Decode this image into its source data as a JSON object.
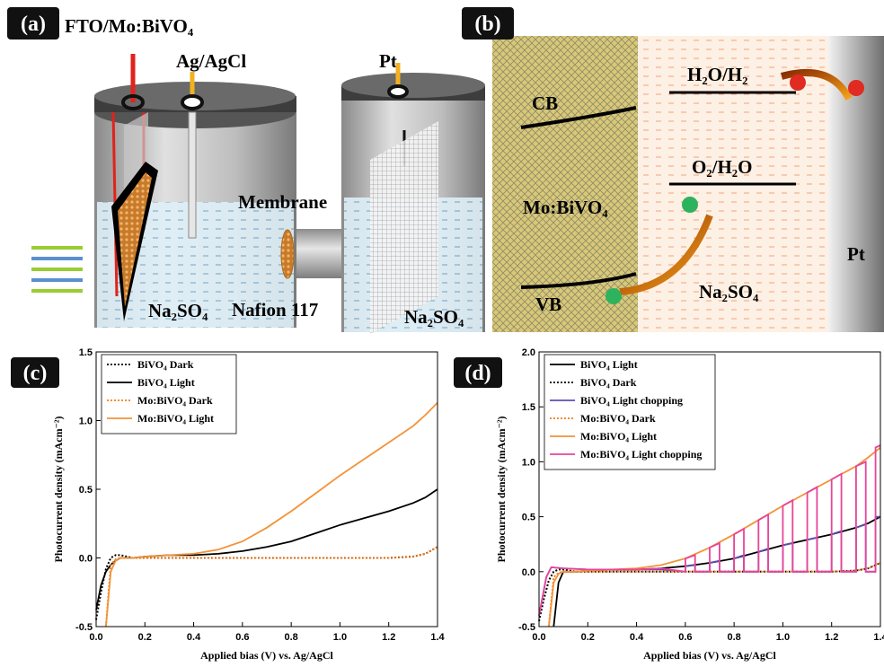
{
  "panel_a": {
    "tag": "(a)",
    "electrode": "FTO/Mo:BiVO₄",
    "reference": "Ag/AgCl",
    "counter": "Pt",
    "membrane": "Membrane",
    "nafion": "Nafion 117",
    "electrolyte_left": "Na₂SO₄",
    "electrolyte_right": "Na₂SO₄"
  },
  "panel_b": {
    "tag": "(b)",
    "cb": "CB",
    "vb": "VB",
    "semiconductor": "Mo:BiVO₄",
    "h2_level": "H₂O/H₂",
    "o2_level": "O₂/H₂O",
    "electrolyte": "Na₂SO₄",
    "metal": "Pt"
  },
  "chart_data": [
    {
      "type": "line",
      "tag": "(c)",
      "xlabel": "Applied bias (V) vs. Ag/AgCl",
      "ylabel": "Photocurrent density (mAcm⁻²)",
      "xlim": [
        0,
        1.4
      ],
      "ylim": [
        -0.5,
        1.5
      ],
      "xticks": [
        {
          "value": 0,
          "label": "0.0"
        },
        0.2,
        0.4,
        0.6,
        0.8,
        {
          "value": 1,
          "label": "1.0"
        },
        1.2,
        1.4
      ],
      "yticks": [
        -0.5,
        {
          "value": 0,
          "label": "0.0"
        },
        0.5,
        {
          "value": 1,
          "label": "1.0"
        },
        1.5
      ],
      "x": [
        0.0,
        0.02,
        0.04,
        0.06,
        0.08,
        0.1,
        0.15,
        0.2,
        0.3,
        0.4,
        0.5,
        0.6,
        0.7,
        0.8,
        0.9,
        1.0,
        1.1,
        1.2,
        1.3,
        1.35,
        1.4
      ],
      "series": [
        {
          "name": "BiVO₄ Dark",
          "color": "#000000",
          "style": "dotted",
          "values": [
            -0.45,
            -0.25,
            -0.08,
            0.0,
            0.02,
            0.02,
            0.0,
            0.0,
            0.0,
            0.0,
            0.0,
            0.0,
            0.0,
            0.0,
            0.0,
            0.0,
            0.0,
            0.0,
            0.01,
            0.03,
            0.08
          ]
        },
        {
          "name": "BiVO₄ Light",
          "color": "#000000",
          "style": "solid",
          "values": [
            -0.38,
            -0.2,
            -0.1,
            -0.05,
            -0.02,
            0.0,
            0.0,
            0.01,
            0.02,
            0.02,
            0.03,
            0.05,
            0.08,
            0.12,
            0.18,
            0.24,
            0.29,
            0.34,
            0.4,
            0.44,
            0.5
          ]
        },
        {
          "name": "Mo:BiVO₄ Dark",
          "color": "#f07d1a",
          "style": "dotted",
          "values": [
            null,
            null,
            -0.5,
            -0.05,
            -0.01,
            0.0,
            0.0,
            0.0,
            0.0,
            0.0,
            0.0,
            0.0,
            0.0,
            0.0,
            0.0,
            0.0,
            0.0,
            0.0,
            0.01,
            0.03,
            0.08
          ]
        },
        {
          "name": "Mo:BiVO₄ Light",
          "color": "#f39237",
          "style": "solid",
          "values": [
            null,
            null,
            -0.5,
            -0.1,
            -0.02,
            0.0,
            0.0,
            0.01,
            0.02,
            0.03,
            0.06,
            0.12,
            0.22,
            0.34,
            0.47,
            0.6,
            0.72,
            0.84,
            0.96,
            1.04,
            1.13
          ]
        }
      ]
    },
    {
      "type": "line",
      "tag": "(d)",
      "xlabel": "Applied bias (V) vs. Ag/AgCl",
      "ylabel": "Photocurrent density (mAcm⁻²)",
      "xlim": [
        0,
        1.4
      ],
      "ylim": [
        -0.5,
        2.0
      ],
      "xticks": [
        {
          "value": 0,
          "label": "0.0"
        },
        0.2,
        0.4,
        0.6,
        0.8,
        {
          "value": 1,
          "label": "1.0"
        },
        1.2,
        1.4
      ],
      "yticks": [
        -0.5,
        {
          "value": 0,
          "label": "0.0"
        },
        0.5,
        {
          "value": 1,
          "label": "1.0"
        },
        1.5,
        {
          "value": 2,
          "label": "2.0"
        }
      ],
      "x": [
        0.0,
        0.02,
        0.04,
        0.06,
        0.08,
        0.1,
        0.15,
        0.2,
        0.3,
        0.4,
        0.5,
        0.6,
        0.7,
        0.8,
        0.9,
        1.0,
        1.1,
        1.2,
        1.3,
        1.35,
        1.4
      ],
      "series": [
        {
          "name": "BiVO₄ Light",
          "color": "#000000",
          "style": "solid",
          "values": [
            null,
            null,
            null,
            -0.5,
            -0.1,
            0.0,
            0.0,
            0.01,
            0.02,
            0.02,
            0.03,
            0.05,
            0.08,
            0.12,
            0.18,
            0.24,
            0.29,
            0.34,
            0.4,
            0.44,
            0.5
          ]
        },
        {
          "name": "BiVO₄ Dark",
          "color": "#000000",
          "style": "dotted",
          "values": [
            -0.45,
            -0.25,
            -0.08,
            0.0,
            0.02,
            0.02,
            0.0,
            0.0,
            0.0,
            0.0,
            0.0,
            0.0,
            0.0,
            0.0,
            0.0,
            0.0,
            0.0,
            0.0,
            0.01,
            0.03,
            0.08
          ]
        },
        {
          "name": "BiVO₄ Light chopping",
          "color": "#5b4fb5",
          "style": "solid",
          "x": [
            0.0,
            0.03,
            0.05,
            0.1,
            0.2,
            0.3,
            0.4,
            0.5,
            0.6,
            0.6,
            0.64,
            0.64,
            0.7,
            0.7,
            0.74,
            0.74,
            0.8,
            0.8,
            0.84,
            0.84,
            0.9,
            0.9,
            0.94,
            0.94,
            1.0,
            1.0,
            1.04,
            1.04,
            1.1,
            1.1,
            1.14,
            1.14,
            1.2,
            1.2,
            1.24,
            1.24,
            1.3,
            1.3,
            1.34,
            1.34,
            1.38,
            1.38,
            1.4
          ],
          "values": [
            -0.4,
            -0.05,
            0.04,
            0.03,
            0.02,
            0.02,
            0.02,
            0.02,
            0.0,
            0.05,
            0.06,
            0.0,
            0.0,
            0.08,
            0.1,
            0.0,
            0.0,
            0.12,
            0.15,
            0.0,
            0.0,
            0.18,
            0.21,
            0.0,
            0.0,
            0.24,
            0.26,
            0.0,
            0.0,
            0.29,
            0.31,
            0.0,
            0.0,
            0.34,
            0.37,
            0.0,
            0.0,
            0.4,
            0.43,
            0.0,
            0.0,
            0.5,
            0.5
          ]
        },
        {
          "name": "Mo:BiVO₄ Dark",
          "color": "#f07d1a",
          "style": "dotted",
          "values": [
            null,
            null,
            -0.5,
            -0.05,
            -0.01,
            0.0,
            0.0,
            0.0,
            0.0,
            0.0,
            0.0,
            0.0,
            0.0,
            0.0,
            0.0,
            0.0,
            0.0,
            0.0,
            0.01,
            0.03,
            0.08
          ]
        },
        {
          "name": "Mo:BiVO₄ Light",
          "color": "#f39237",
          "style": "solid",
          "values": [
            null,
            null,
            -0.5,
            -0.1,
            -0.02,
            0.0,
            0.0,
            0.01,
            0.02,
            0.03,
            0.06,
            0.12,
            0.22,
            0.34,
            0.47,
            0.6,
            0.72,
            0.84,
            0.96,
            1.04,
            1.13
          ]
        },
        {
          "name": "Mo:BiVO₄ Light chopping",
          "color": "#e8449a",
          "style": "solid",
          "x": [
            0.0,
            0.03,
            0.05,
            0.1,
            0.2,
            0.3,
            0.4,
            0.5,
            0.6,
            0.6,
            0.64,
            0.64,
            0.7,
            0.7,
            0.74,
            0.74,
            0.8,
            0.8,
            0.84,
            0.84,
            0.9,
            0.9,
            0.94,
            0.94,
            1.0,
            1.0,
            1.04,
            1.04,
            1.1,
            1.1,
            1.14,
            1.14,
            1.2,
            1.2,
            1.24,
            1.24,
            1.3,
            1.3,
            1.34,
            1.34,
            1.38,
            1.38,
            1.4
          ],
          "values": [
            -0.4,
            -0.05,
            0.04,
            0.03,
            0.02,
            0.02,
            0.02,
            0.03,
            0.0,
            0.12,
            0.15,
            0.0,
            0.0,
            0.22,
            0.26,
            0.0,
            0.0,
            0.34,
            0.39,
            0.0,
            0.0,
            0.47,
            0.52,
            0.0,
            0.0,
            0.6,
            0.65,
            0.0,
            0.0,
            0.72,
            0.77,
            0.0,
            0.0,
            0.84,
            0.89,
            0.0,
            0.0,
            0.96,
            1.0,
            0.0,
            0.0,
            1.13,
            1.15
          ]
        }
      ]
    }
  ]
}
